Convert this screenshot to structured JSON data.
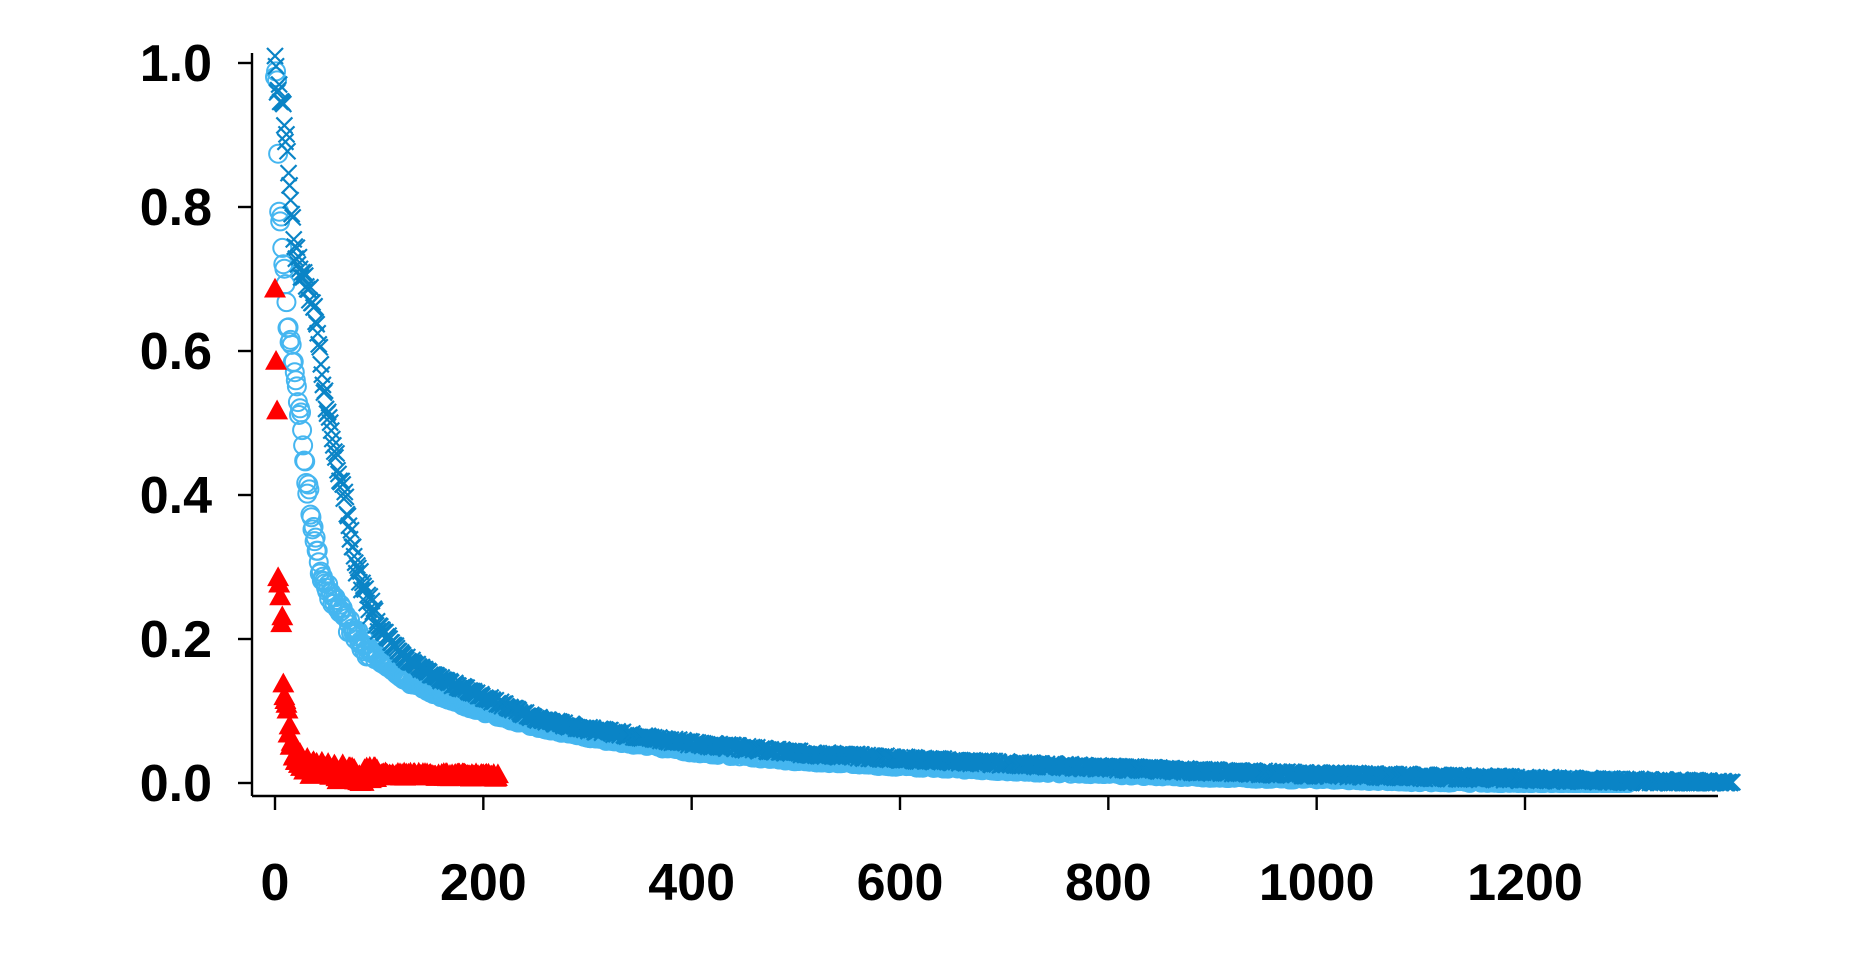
{
  "chart_data": {
    "type": "scatter",
    "title": "",
    "xlabel": "",
    "ylabel": "",
    "xlim": [
      -15,
      1390
    ],
    "ylim": [
      -0.02,
      1.0
    ],
    "x_ticks": [
      0,
      200,
      400,
      600,
      800,
      1000,
      1200
    ],
    "y_ticks": [
      0.0,
      0.2,
      0.4,
      0.6,
      0.8,
      1.0
    ],
    "x_tick_labels": [
      "0",
      "200",
      "400",
      "600",
      "800",
      "1000",
      "1200"
    ],
    "y_tick_labels": [
      "0.0",
      "0.2",
      "0.4",
      "0.6",
      "0.8",
      "1.0"
    ],
    "grid": false,
    "legend": "none",
    "series": [
      {
        "marker": "cross",
        "color": "#0a84c6",
        "count": 1400,
        "points": [
          [
            0,
            1.0
          ],
          [
            2,
            0.97
          ],
          [
            4,
            0.96
          ],
          [
            6,
            0.95
          ],
          [
            8,
            0.94
          ],
          [
            10,
            0.9
          ],
          [
            12,
            0.88
          ],
          [
            14,
            0.83
          ],
          [
            16,
            0.8
          ],
          [
            18,
            0.76
          ],
          [
            20,
            0.74
          ],
          [
            25,
            0.71
          ],
          [
            30,
            0.7
          ],
          [
            35,
            0.67
          ],
          [
            40,
            0.64
          ],
          [
            45,
            0.57
          ],
          [
            50,
            0.52
          ],
          [
            55,
            0.47
          ],
          [
            60,
            0.44
          ],
          [
            65,
            0.41
          ],
          [
            70,
            0.37
          ],
          [
            75,
            0.32
          ],
          [
            80,
            0.29
          ],
          [
            90,
            0.25
          ],
          [
            100,
            0.22
          ],
          [
            120,
            0.18
          ],
          [
            150,
            0.15
          ],
          [
            200,
            0.12
          ],
          [
            250,
            0.09
          ],
          [
            300,
            0.075
          ],
          [
            400,
            0.055
          ],
          [
            500,
            0.042
          ],
          [
            600,
            0.034
          ],
          [
            700,
            0.027
          ],
          [
            800,
            0.021
          ],
          [
            900,
            0.016
          ],
          [
            1000,
            0.012
          ],
          [
            1100,
            0.009
          ],
          [
            1200,
            0.006
          ],
          [
            1300,
            0.003
          ],
          [
            1399,
            0.0
          ]
        ]
      },
      {
        "marker": "circle",
        "color": "#45b6f0",
        "count": 1300,
        "points": [
          [
            0,
            0.99
          ],
          [
            2,
            0.97
          ],
          [
            4,
            0.8
          ],
          [
            6,
            0.78
          ],
          [
            8,
            0.72
          ],
          [
            10,
            0.7
          ],
          [
            12,
            0.64
          ],
          [
            14,
            0.62
          ],
          [
            16,
            0.6
          ],
          [
            18,
            0.58
          ],
          [
            20,
            0.57
          ],
          [
            22,
            0.53
          ],
          [
            25,
            0.51
          ],
          [
            28,
            0.45
          ],
          [
            30,
            0.42
          ],
          [
            33,
            0.4
          ],
          [
            35,
            0.37
          ],
          [
            40,
            0.32
          ],
          [
            45,
            0.29
          ],
          [
            50,
            0.27
          ],
          [
            60,
            0.25
          ],
          [
            70,
            0.22
          ],
          [
            80,
            0.2
          ],
          [
            100,
            0.17
          ],
          [
            130,
            0.14
          ],
          [
            170,
            0.115
          ],
          [
            200,
            0.1
          ],
          [
            250,
            0.08
          ],
          [
            300,
            0.065
          ],
          [
            400,
            0.045
          ],
          [
            500,
            0.033
          ],
          [
            600,
            0.025
          ],
          [
            700,
            0.019
          ],
          [
            800,
            0.014
          ],
          [
            900,
            0.01
          ],
          [
            1000,
            0.007
          ],
          [
            1100,
            0.004
          ],
          [
            1200,
            0.002
          ],
          [
            1299,
            0.0
          ]
        ]
      },
      {
        "marker": "triangle",
        "color": "#ff0000",
        "count": 215,
        "points": [
          [
            0,
            0.69
          ],
          [
            1,
            0.58
          ],
          [
            2,
            0.52
          ],
          [
            3,
            0.28
          ],
          [
            5,
            0.27
          ],
          [
            6,
            0.23
          ],
          [
            7,
            0.22
          ],
          [
            8,
            0.14
          ],
          [
            9,
            0.13
          ],
          [
            10,
            0.12
          ],
          [
            11,
            0.1
          ],
          [
            12,
            0.09
          ],
          [
            13,
            0.08
          ],
          [
            14,
            0.07
          ],
          [
            15,
            0.06
          ],
          [
            17,
            0.05
          ],
          [
            20,
            0.04
          ],
          [
            25,
            0.03
          ],
          [
            30,
            0.025
          ],
          [
            40,
            0.02
          ],
          [
            60,
            0.015
          ],
          [
            100,
            0.012
          ],
          [
            150,
            0.011
          ],
          [
            214,
            0.01
          ]
        ]
      }
    ]
  }
}
